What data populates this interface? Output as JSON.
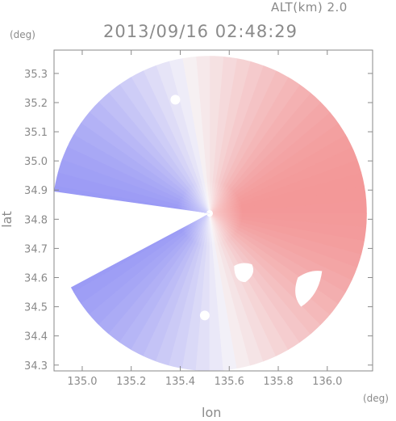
{
  "header": {
    "altitude": "ALT(km) 2.0",
    "timestamp": "2013/09/16 02:48:29"
  },
  "chart_data": {
    "type": "heatmap",
    "title": "2013/09/16 02:48:29",
    "subtitle": "ALT(km) 2.0",
    "xlabel": "lon",
    "ylabel": "lat",
    "x_unit": "(deg)",
    "y_unit": "(deg)",
    "xlim": [
      134.885,
      136.185
    ],
    "ylim": [
      34.28,
      35.38
    ],
    "x_ticks": [
      135.0,
      135.2,
      135.4,
      135.6,
      135.8,
      136.0
    ],
    "x_tick_labels": [
      "135.0",
      "135.2",
      "135.4",
      "135.6",
      "135.8",
      "136.0"
    ],
    "y_ticks": [
      34.3,
      34.4,
      34.5,
      34.6,
      34.7,
      34.8,
      34.9,
      35.0,
      35.1,
      35.2,
      35.3
    ],
    "y_tick_labels": [
      "34.3",
      "34.4",
      "34.5",
      "34.6",
      "34.7",
      "34.8",
      "34.9",
      "35.0",
      "35.1",
      "35.2",
      "35.3"
    ],
    "radar_center": {
      "lon": 135.52,
      "lat": 34.82
    },
    "radar_range_deg_lat": 0.54,
    "colormap": {
      "negative": "#8c8cf4",
      "zero": "#f6f4f8",
      "positive": "#f28888"
    },
    "field_description_values": {
      "approaching_sector_lon_range": [
        134.885,
        135.52
      ],
      "receding_sector_lon_range": [
        135.52,
        136.185
      ]
    }
  }
}
